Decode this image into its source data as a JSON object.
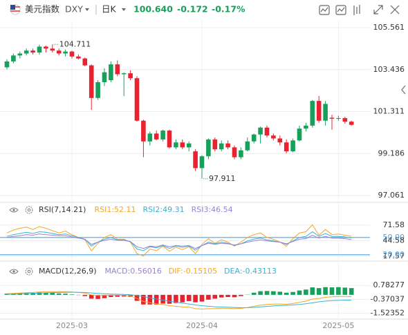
{
  "header": {
    "name": "美元指数",
    "symbol": "DXY",
    "period": "日K",
    "price": "100.640",
    "change": "-0.172",
    "change_pct": "-0.17%"
  },
  "chart_data": [
    {
      "type": "candlestick",
      "up_color": "#16a05a",
      "down_color": "#e8222f",
      "grid": true,
      "categories": [
        null,
        null,
        null,
        null,
        null,
        null,
        null,
        null,
        null,
        null,
        "2025-03",
        null,
        null,
        null,
        null,
        null,
        null,
        null,
        null,
        null,
        null,
        null,
        null,
        null,
        null,
        null,
        null,
        null,
        null,
        null,
        "2025-04",
        null,
        null,
        null,
        null,
        null,
        null,
        null,
        null,
        null,
        null,
        null,
        null,
        null,
        null,
        null,
        null,
        null,
        null,
        null,
        null,
        "2025-05",
        null,
        null
      ],
      "open": [
        103.55,
        103.85,
        104.15,
        104.25,
        104.4,
        104.3,
        104.6,
        104.5,
        104.4,
        104.25,
        104.35,
        104.1,
        104.0,
        103.65,
        102.0,
        102.8,
        102.9,
        103.7,
        103.2,
        103.25,
        103.0,
        100.85,
        99.8,
        100.2,
        99.9,
        100.35,
        99.5,
        99.75,
        99.5,
        99.3,
        98.45,
        99.05,
        99.9,
        99.4,
        99.7,
        99.5,
        99.0,
        99.35,
        99.8,
        100.15,
        100.5,
        100.1,
        99.95,
        99.75,
        99.3,
        99.85,
        100.45,
        100.6,
        101.85,
        100.85,
        101.0,
        100.95,
        100.98,
        100.8
      ],
      "high": [
        103.95,
        104.25,
        104.35,
        104.5,
        104.5,
        104.7,
        104.65,
        104.711,
        104.5,
        104.45,
        104.4,
        104.2,
        104.05,
        103.7,
        102.9,
        103.5,
        103.85,
        103.9,
        103.3,
        103.4,
        103.1,
        100.9,
        100.3,
        100.35,
        100.4,
        100.4,
        99.9,
        99.9,
        99.8,
        99.4,
        99.1,
        99.95,
        100.0,
        99.85,
        99.85,
        99.6,
        99.5,
        100.0,
        100.2,
        100.55,
        100.6,
        100.2,
        100.1,
        99.9,
        99.95,
        100.6,
        100.75,
        101.9,
        102.1,
        101.85,
        101.15,
        101.1,
        101.05,
        100.85
      ],
      "low": [
        103.45,
        103.75,
        104.0,
        104.15,
        104.2,
        104.2,
        104.3,
        104.3,
        104.15,
        104.1,
        104.0,
        103.95,
        103.6,
        101.4,
        101.9,
        102.6,
        102.8,
        103.1,
        102.1,
        102.9,
        100.8,
        99.0,
        99.6,
        99.85,
        99.8,
        99.45,
        99.4,
        99.4,
        99.3,
        98.3,
        97.911,
        98.9,
        99.3,
        99.3,
        99.4,
        98.9,
        98.9,
        99.3,
        99.7,
        99.7,
        100.0,
        99.85,
        99.6,
        99.2,
        99.25,
        99.8,
        100.3,
        100.5,
        100.75,
        100.6,
        100.4,
        100.85,
        100.7,
        100.6
      ],
      "close": [
        103.85,
        104.15,
        104.25,
        104.4,
        104.3,
        104.6,
        104.5,
        104.4,
        104.25,
        104.35,
        104.1,
        104.0,
        103.65,
        102.0,
        102.8,
        103.3,
        103.7,
        103.2,
        103.25,
        103.0,
        100.85,
        99.8,
        100.2,
        99.9,
        100.35,
        99.5,
        99.75,
        99.5,
        99.7,
        98.45,
        99.05,
        99.9,
        99.4,
        99.7,
        99.5,
        99.0,
        99.35,
        99.8,
        100.15,
        100.5,
        100.1,
        99.95,
        99.75,
        99.3,
        99.85,
        100.45,
        100.6,
        101.85,
        100.85,
        101.7,
        100.95,
        100.98,
        100.8,
        100.64
      ],
      "ylim": [
        96.75,
        105.91
      ],
      "yticks": [
        105.561,
        103.436,
        101.311,
        99.186,
        97.061
      ],
      "annotations": [
        "104.711",
        "97.911"
      ]
    },
    {
      "type": "line",
      "title": "RSI(7,14,21)",
      "reference_color": "#4aa3e8",
      "ylim": [
        9,
        81
      ],
      "yticks": [
        71.58,
        {
          "value": 50,
          "label": "50.00"
        },
        44.58,
        17.57,
        {
          "value": 20,
          "label": "20.00"
        }
      ],
      "series": [
        {
          "name": "RSI1:52.11",
          "color": "#f5a623",
          "values": [
            58,
            63,
            66,
            68,
            64,
            69,
            66,
            62,
            58,
            61,
            55,
            50,
            46,
            27,
            40,
            50,
            55,
            47,
            47,
            42,
            22,
            18,
            30,
            27,
            35,
            26,
            33,
            29,
            34,
            22,
            38,
            48,
            40,
            46,
            42,
            35,
            42,
            50,
            55,
            58,
            50,
            47,
            42,
            35,
            48,
            58,
            60,
            72,
            54,
            64,
            55,
            56,
            54,
            52.11
          ]
        },
        {
          "name": "RSI2:49.31",
          "color": "#34b3d6",
          "values": [
            52,
            55,
            57,
            59,
            57,
            60,
            59,
            57,
            55,
            56,
            53,
            50,
            47,
            35,
            42,
            47,
            50,
            46,
            46,
            43,
            30,
            27,
            34,
            32,
            36,
            31,
            35,
            33,
            35,
            28,
            36,
            42,
            39,
            42,
            40,
            36,
            39,
            44,
            47,
            49,
            46,
            44,
            42,
            38,
            44,
            50,
            52,
            60,
            52,
            57,
            52,
            52,
            51,
            49.31
          ]
        },
        {
          "name": "RSI3:46.54",
          "color": "#9b7fd9",
          "values": [
            50,
            52,
            53,
            55,
            54,
            56,
            55,
            54,
            53,
            53,
            51,
            49,
            47,
            38,
            42,
            45,
            47,
            45,
            45,
            43,
            34,
            31,
            35,
            34,
            37,
            34,
            36,
            35,
            36,
            31,
            36,
            40,
            38,
            40,
            39,
            37,
            39,
            42,
            44,
            46,
            44,
            43,
            42,
            39,
            43,
            47,
            48,
            54,
            49,
            52,
            49,
            49,
            48,
            46.54
          ]
        }
      ]
    },
    {
      "type": "macd",
      "title": "MACD(12,26,9)",
      "up_color": "#16a05a",
      "down_color": "#e8222f",
      "ylim": [
        -1.9,
        2.0
      ],
      "yticks": [
        0.78277,
        -0.37037,
        -1.52352
      ],
      "series": [
        {
          "name": "MACD:0.56016",
          "color": "#9b7fd9",
          "kind": "histogram",
          "values": [
            0.1,
            0.12,
            0.14,
            0.16,
            0.16,
            0.2,
            0.18,
            0.16,
            0.12,
            0.1,
            0.04,
            -0.02,
            -0.1,
            -0.32,
            -0.34,
            -0.28,
            -0.18,
            -0.16,
            -0.14,
            -0.16,
            -0.5,
            -0.8,
            -0.8,
            -0.8,
            -0.72,
            -0.74,
            -0.68,
            -0.62,
            -0.52,
            -0.62,
            -0.56,
            -0.4,
            -0.32,
            -0.22,
            -0.18,
            -0.2,
            -0.1,
            0.02,
            0.18,
            0.3,
            0.32,
            0.3,
            0.26,
            0.18,
            0.24,
            0.36,
            0.44,
            0.62,
            0.56,
            0.64,
            0.62,
            0.64,
            0.6,
            0.56016
          ]
        },
        {
          "name": "DIF:-0.15105",
          "color": "#f5a623",
          "kind": "line",
          "values": [
            0.1,
            0.12,
            0.15,
            0.18,
            0.2,
            0.24,
            0.26,
            0.27,
            0.26,
            0.26,
            0.24,
            0.2,
            0.15,
            0.0,
            -0.05,
            -0.05,
            -0.02,
            -0.03,
            -0.04,
            -0.07,
            -0.3,
            -0.55,
            -0.65,
            -0.75,
            -0.8,
            -0.9,
            -0.95,
            -1.0,
            -1.02,
            -1.15,
            -1.18,
            -1.15,
            -1.15,
            -1.12,
            -1.12,
            -1.15,
            -1.12,
            -1.05,
            -0.95,
            -0.85,
            -0.8,
            -0.77,
            -0.76,
            -0.78,
            -0.72,
            -0.62,
            -0.52,
            -0.35,
            -0.3,
            -0.2,
            -0.17,
            -0.14,
            -0.14,
            -0.15105
          ]
        },
        {
          "name": "DEA:-0.43113",
          "color": "#34b3d6",
          "kind": "line",
          "values": [
            0.05,
            0.06,
            0.08,
            0.1,
            0.12,
            0.14,
            0.17,
            0.19,
            0.2,
            0.21,
            0.22,
            0.21,
            0.2,
            0.16,
            0.12,
            0.09,
            0.07,
            0.05,
            0.03,
            0.01,
            -0.05,
            -0.15,
            -0.25,
            -0.35,
            -0.44,
            -0.53,
            -0.61,
            -0.69,
            -0.76,
            -0.84,
            -0.9,
            -0.95,
            -0.99,
            -1.01,
            -1.03,
            -1.05,
            -1.07,
            -1.06,
            -1.04,
            -1.0,
            -0.96,
            -0.92,
            -0.89,
            -0.87,
            -0.84,
            -0.8,
            -0.74,
            -0.66,
            -0.58,
            -0.52,
            -0.48,
            -0.46,
            -0.44,
            -0.43113
          ]
        }
      ]
    }
  ]
}
